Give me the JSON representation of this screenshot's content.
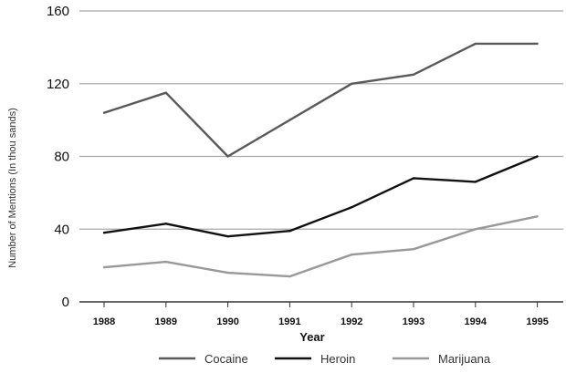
{
  "chart_data": {
    "type": "line",
    "title": "",
    "xlabel": "Year",
    "ylabel": "Number of Mentions (In thou sands)",
    "categories": [
      "1988",
      "1989",
      "1990",
      "1991",
      "1992",
      "1993",
      "1994",
      "1995"
    ],
    "ylim": [
      0,
      160
    ],
    "yticks": [
      "0",
      "40",
      "80",
      "120",
      "160"
    ],
    "grid": true,
    "legend_position": "bottom",
    "series": [
      {
        "name": "Cocaine",
        "color": "#5a5a5a",
        "values": [
          104,
          115,
          80,
          100,
          120,
          125,
          142,
          142
        ]
      },
      {
        "name": "Heroin",
        "color": "#111111",
        "values": [
          38,
          43,
          36,
          39,
          52,
          68,
          66,
          80
        ]
      },
      {
        "name": "Marijuana",
        "color": "#999999",
        "values": [
          19,
          22,
          16,
          14,
          26,
          29,
          40,
          47
        ]
      }
    ]
  }
}
